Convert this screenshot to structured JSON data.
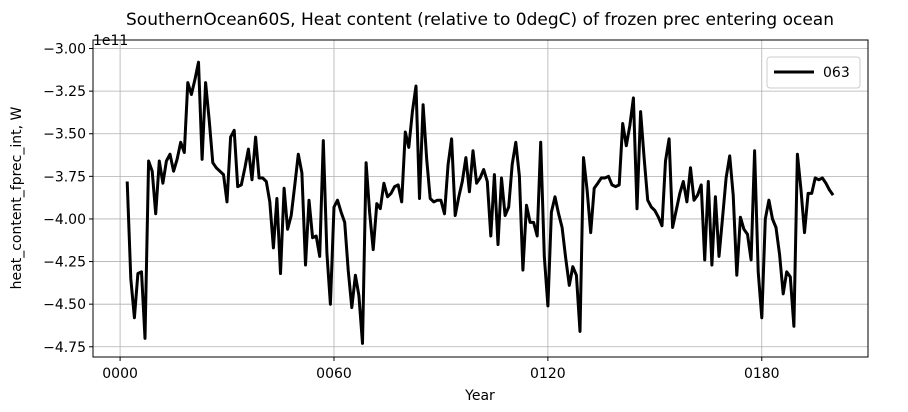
{
  "chart_data": {
    "type": "line",
    "title": "SouthernOcean60S, Heat content (relative to 0degC) of frozen prec entering ocean",
    "xlabel": "Year",
    "ylabel": "heat_content_fprec_int, W",
    "y_offset_label": "1e11",
    "x": [
      2,
      3,
      4,
      5,
      6,
      7,
      8,
      9,
      10,
      11,
      12,
      13,
      14,
      15,
      16,
      17,
      18,
      19,
      20,
      21,
      22,
      23,
      24,
      25,
      26,
      27,
      28,
      29,
      30,
      31,
      32,
      33,
      34,
      35,
      36,
      37,
      38,
      39,
      40,
      41,
      42,
      43,
      44,
      45,
      46,
      47,
      48,
      49,
      50,
      51,
      52,
      53,
      54,
      55,
      56,
      57,
      58,
      59,
      60,
      61,
      62,
      63,
      64,
      65,
      66,
      67,
      68,
      69,
      70,
      71,
      72,
      73,
      74,
      75,
      76,
      77,
      78,
      79,
      80,
      81,
      82,
      83,
      84,
      85,
      86,
      87,
      88,
      89,
      90,
      91,
      92,
      93,
      94,
      95,
      96,
      97,
      98,
      99,
      100,
      101,
      102,
      103,
      104,
      105,
      106,
      107,
      108,
      109,
      110,
      111,
      112,
      113,
      114,
      115,
      116,
      117,
      118,
      119,
      120,
      121,
      122,
      123,
      124,
      125,
      126,
      127,
      128,
      129,
      130,
      131,
      132,
      133,
      134,
      135,
      136,
      137,
      138,
      139,
      140,
      141,
      142,
      143,
      144,
      145,
      146,
      147,
      148,
      149,
      150,
      151,
      152,
      153,
      154,
      155,
      156,
      157,
      158,
      159,
      160,
      161,
      162,
      163,
      164,
      165,
      166,
      167,
      168,
      169,
      170,
      171,
      172,
      173,
      174,
      175,
      176,
      177,
      178,
      179,
      180,
      181,
      182,
      183,
      184,
      185,
      186,
      187,
      188,
      189,
      190,
      191,
      192,
      193,
      194,
      195,
      196,
      197,
      198,
      199,
      200
    ],
    "series": [
      {
        "name": "063",
        "color": "#000000",
        "values": [
          -3.78,
          -4.35,
          -4.58,
          -4.32,
          -4.31,
          -4.7,
          -3.66,
          -3.72,
          -3.97,
          -3.66,
          -3.79,
          -3.66,
          -3.62,
          -3.72,
          -3.65,
          -3.55,
          -3.61,
          -3.2,
          -3.27,
          -3.18,
          -3.08,
          -3.65,
          -3.2,
          -3.42,
          -3.67,
          -3.7,
          -3.72,
          -3.74,
          -3.9,
          -3.52,
          -3.48,
          -3.81,
          -3.8,
          -3.7,
          -3.59,
          -3.77,
          -3.52,
          -3.76,
          -3.76,
          -3.78,
          -3.9,
          -4.17,
          -3.88,
          -4.32,
          -3.82,
          -4.06,
          -3.98,
          -3.8,
          -3.62,
          -3.73,
          -4.27,
          -3.89,
          -4.11,
          -4.1,
          -4.22,
          -3.54,
          -4.2,
          -4.5,
          -3.93,
          -3.89,
          -3.96,
          -4.02,
          -4.3,
          -4.52,
          -4.33,
          -4.45,
          -4.73,
          -3.67,
          -3.96,
          -4.18,
          -3.91,
          -3.94,
          -3.79,
          -3.87,
          -3.85,
          -3.81,
          -3.8,
          -3.9,
          -3.49,
          -3.58,
          -3.37,
          -3.22,
          -3.88,
          -3.33,
          -3.65,
          -3.88,
          -3.9,
          -3.89,
          -3.89,
          -3.97,
          -3.68,
          -3.53,
          -3.98,
          -3.87,
          -3.78,
          -3.64,
          -3.84,
          -3.6,
          -3.79,
          -3.76,
          -3.71,
          -3.78,
          -4.1,
          -3.74,
          -4.15,
          -3.76,
          -3.98,
          -3.93,
          -3.68,
          -3.55,
          -3.75,
          -4.3,
          -3.92,
          -4.02,
          -4.02,
          -4.1,
          -3.55,
          -4.22,
          -4.51,
          -3.96,
          -3.87,
          -3.97,
          -4.05,
          -4.23,
          -4.39,
          -4.28,
          -4.33,
          -4.66,
          -3.64,
          -3.83,
          -4.08,
          -3.82,
          -3.79,
          -3.76,
          -3.76,
          -3.75,
          -3.8,
          -3.81,
          -3.8,
          -3.44,
          -3.57,
          -3.45,
          -3.29,
          -3.94,
          -3.37,
          -3.64,
          -3.89,
          -3.93,
          -3.95,
          -3.99,
          -4.04,
          -3.66,
          -3.53,
          -4.05,
          -3.95,
          -3.85,
          -3.78,
          -3.9,
          -3.7,
          -3.89,
          -3.86,
          -3.8,
          -4.24,
          -3.78,
          -4.27,
          -3.87,
          -4.22,
          -3.99,
          -3.76,
          -3.63,
          -3.86,
          -4.33,
          -3.99,
          -4.06,
          -4.09,
          -4.24,
          -3.6,
          -4.31,
          -4.58,
          -4.0,
          -3.89,
          -4.0,
          -4.05,
          -4.21,
          -4.44,
          -4.31,
          -4.34,
          -4.63,
          -3.62,
          -3.83,
          -4.08,
          -3.85,
          -3.85,
          -3.76,
          -3.77,
          -3.76,
          -3.79,
          -3.83,
          -3.86
        ]
      }
    ],
    "xlim": [
      -7.6,
      209.8
    ],
    "xticks": [
      {
        "value": 0,
        "label": "0000"
      },
      {
        "value": 60,
        "label": "0060"
      },
      {
        "value": 120,
        "label": "0120"
      },
      {
        "value": 180,
        "label": "0180"
      }
    ],
    "ylim": [
      -4.81,
      -2.95
    ],
    "yticks": [
      {
        "value": -3.0,
        "label": "−3.00"
      },
      {
        "value": -3.25,
        "label": "−3.25"
      },
      {
        "value": -3.5,
        "label": "−3.50"
      },
      {
        "value": -3.75,
        "label": "−3.75"
      },
      {
        "value": -4.0,
        "label": "−4.00"
      },
      {
        "value": -4.25,
        "label": "−4.25"
      },
      {
        "value": -4.5,
        "label": "−4.50"
      },
      {
        "value": -4.75,
        "label": "−4.75"
      }
    ],
    "grid": true,
    "legend": "upper right"
  }
}
